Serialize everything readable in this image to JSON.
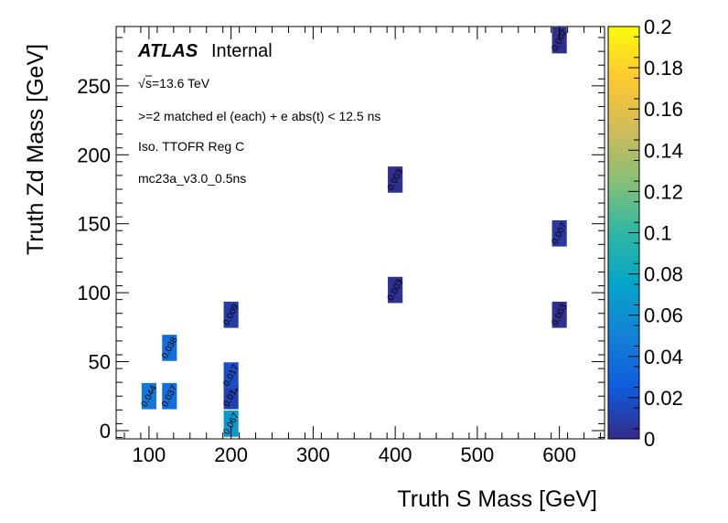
{
  "chart_data": {
    "type": "heatmap",
    "xlabel": "Truth S Mass [GeV]",
    "ylabel": "Truth Zd Mass [GeV]",
    "xlim": [
      60,
      655
    ],
    "ylim": [
      -6,
      293
    ],
    "x_ticks": [
      100,
      200,
      300,
      400,
      500,
      600
    ],
    "y_ticks": [
      0,
      50,
      100,
      150,
      200,
      250
    ],
    "x_tick_labels": [
      "100",
      "200",
      "300",
      "400",
      "500",
      "600"
    ],
    "y_tick_labels": [
      "0",
      "50",
      "100",
      "150",
      "200",
      "250"
    ],
    "bin_width_x": 18,
    "bin_height_y": 19,
    "zlim": [
      0,
      0.2
    ],
    "colorbar_ticks": [
      0,
      0.02,
      0.04,
      0.06,
      0.08,
      0.1,
      0.12,
      0.14,
      0.16,
      0.18,
      0.2
    ],
    "colorbar_tick_labels": [
      "0",
      "0.02",
      "0.04",
      "0.06",
      "0.08",
      "0.1",
      "0.12",
      "0.14",
      "0.16",
      "0.18",
      "0.2"
    ],
    "colormap": [
      "#352a87",
      "#0f5cdd",
      "#1481d6",
      "#06a4ca",
      "#2eb7a4",
      "#87bf77",
      "#d1bb59",
      "#fec832",
      "#f9fb0e"
    ],
    "cells": [
      {
        "x": 100,
        "y": 25,
        "value": 0.044,
        "label": "0.044"
      },
      {
        "x": 125,
        "y": 25,
        "value": 0.037,
        "label": "0.037"
      },
      {
        "x": 125,
        "y": 60,
        "value": 0.038,
        "label": "0.038"
      },
      {
        "x": 200,
        "y": 5,
        "value": 0.067,
        "label": "0.067"
      },
      {
        "x": 200,
        "y": 25,
        "value": 0.011,
        "label": "0.011"
      },
      {
        "x": 200,
        "y": 40,
        "value": 0.017,
        "label": "0.017"
      },
      {
        "x": 200,
        "y": 84,
        "value": 0.009,
        "label": "0.009"
      },
      {
        "x": 400,
        "y": 102,
        "value": 0.003,
        "label": "0.003"
      },
      {
        "x": 400,
        "y": 182,
        "value": 0.003,
        "label": "0.003"
      },
      {
        "x": 600,
        "y": 84,
        "value": 0.003,
        "label": "0.003"
      },
      {
        "x": 600,
        "y": 143,
        "value": 0.007,
        "label": "0.007"
      },
      {
        "x": 600,
        "y": 283,
        "value": 0.002,
        "label": "0.002"
      }
    ],
    "legend": {
      "atlas": "ATLAS",
      "internal": "Internal",
      "sqrt_symbol": "√",
      "energy": "s=13.6 TeV",
      "selection": ">=2 matched el (each) + e abs(t) < 12.5 ns",
      "region": "Iso. TTOFR Reg C",
      "sample": "mc23a_v3.0_0.5ns"
    }
  }
}
